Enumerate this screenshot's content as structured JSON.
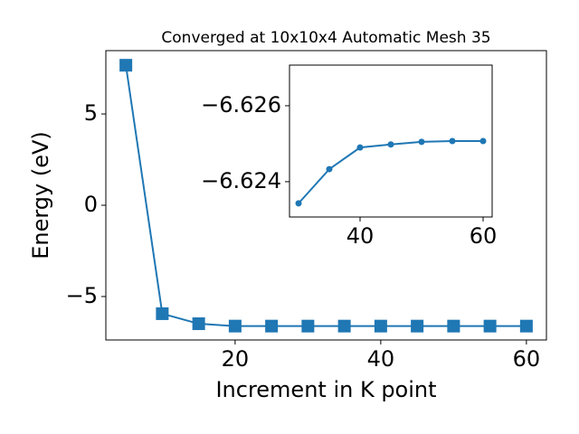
{
  "chart_data": [
    {
      "type": "line",
      "title": "Converged at 10x10x4 Automatic Mesh 35",
      "xlabel": "Increment in K point",
      "ylabel": "Energy (eV)",
      "x": [
        5,
        10,
        15,
        20,
        25,
        30,
        35,
        40,
        45,
        50,
        55,
        60
      ],
      "series": [
        {
          "color": "#1f77b4",
          "marker": "square",
          "values": [
            7.67,
            -5.94,
            -6.49,
            -6.62,
            -6.62,
            -6.62,
            -6.62,
            -6.62,
            -6.62,
            -6.62,
            -6.62,
            -6.62
          ]
        }
      ],
      "xlim": [
        2.25,
        62.75
      ],
      "ylim": [
        -7.38,
        8.47
      ],
      "xticks": [
        20,
        40,
        60
      ],
      "yticks": [
        {
          "value": -5,
          "label": "−5"
        },
        0,
        5
      ]
    },
    {
      "type": "line",
      "x": [
        30,
        35,
        40,
        45,
        50,
        55,
        60
      ],
      "series": [
        {
          "color": "#1f77b4",
          "marker": "circle",
          "values": [
            -6.62343,
            -6.62433,
            -6.6249,
            -6.62498,
            -6.62505,
            -6.62507,
            -6.62507
          ]
        }
      ],
      "xlim": [
        28.53,
        61.47
      ],
      "ylim": [
        -6.62307,
        -6.62707
      ],
      "xticks": [
        40,
        60
      ],
      "yticks": [
        {
          "value": -6.624,
          "label": "−6.624"
        },
        {
          "value": -6.626,
          "label": "−6.626"
        }
      ]
    }
  ]
}
